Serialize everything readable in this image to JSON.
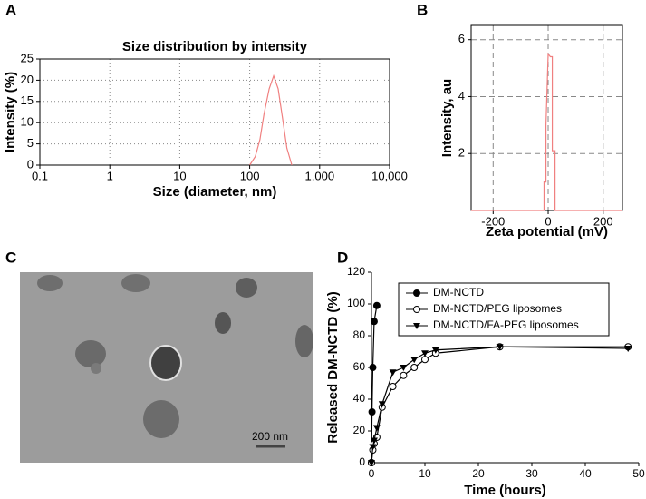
{
  "chart_data": [
    {
      "type": "line",
      "label": "A",
      "title": "Size distribution by intensity",
      "xlabel": "Size (diameter, nm)",
      "ylabel": "Intensity (%)",
      "xscale": "log",
      "xlim": [
        0.1,
        10000
      ],
      "xticks": [
        0.1,
        1,
        10,
        100,
        {
          "value": 1000,
          "label": "1,000"
        },
        {
          "value": 10000,
          "label": "10,000"
        }
      ],
      "ylim": [
        0,
        25
      ],
      "yticks": [
        0,
        5,
        10,
        15,
        20,
        25
      ],
      "grid": "dotted",
      "color": "#f08080",
      "x": [
        100,
        120,
        140,
        160,
        190,
        220,
        255,
        295,
        340,
        400
      ],
      "values": [
        0,
        2,
        6,
        12,
        18,
        21,
        18,
        11,
        4,
        0
      ]
    },
    {
      "type": "line",
      "label": "B",
      "xlabel": "Zeta potential (mV)",
      "ylabel": "Intensity, au",
      "xlim": [
        -280,
        270
      ],
      "xticks": [
        -200,
        0,
        200
      ],
      "ylim": [
        0,
        6.5
      ],
      "yticks": [
        2,
        4,
        6
      ],
      "grid": "dashed",
      "color": "#f08080",
      "x": [
        -280,
        -15,
        -15,
        -8,
        -8,
        0,
        8,
        15,
        15,
        25,
        25,
        270
      ],
      "values": [
        0,
        0,
        1,
        1,
        3,
        5.5,
        5.4,
        5.4,
        2.1,
        2.1,
        0,
        0
      ]
    },
    {
      "type": "image",
      "label": "C",
      "scale_bar": "200 nm"
    },
    {
      "type": "line",
      "label": "D",
      "xlabel": "Time (hours)",
      "ylabel": "Released DM-NCTD (%)",
      "xlim": [
        0,
        50
      ],
      "xticks": [
        0,
        10,
        20,
        30,
        40,
        50
      ],
      "ylim": [
        0,
        120
      ],
      "yticks": [
        0,
        20,
        40,
        60,
        80,
        100,
        120
      ],
      "series": [
        {
          "name": "DM-NCTD",
          "marker": "circle",
          "color": "#000000",
          "x": [
            0,
            0.1,
            0.25,
            0.5,
            1
          ],
          "values": [
            0,
            32,
            60,
            89,
            99
          ]
        },
        {
          "name": "DM-NCTD/PEG liposomes",
          "marker": "open-circle",
          "color": "#000000",
          "x": [
            0,
            0.25,
            0.5,
            1,
            2,
            4,
            6,
            8,
            10,
            12,
            24,
            48
          ],
          "values": [
            0,
            8,
            12,
            16,
            35,
            48,
            55,
            60,
            65,
            69,
            73,
            73
          ]
        },
        {
          "name": "DM-NCTD/FA-PEG liposomes",
          "marker": "triangle-down",
          "color": "#000000",
          "x": [
            0,
            0.25,
            0.5,
            1,
            2,
            4,
            6,
            8,
            10,
            12,
            24,
            48
          ],
          "values": [
            0,
            10,
            14,
            22,
            37,
            57,
            60,
            65,
            69,
            71,
            73,
            72
          ]
        }
      ]
    }
  ]
}
